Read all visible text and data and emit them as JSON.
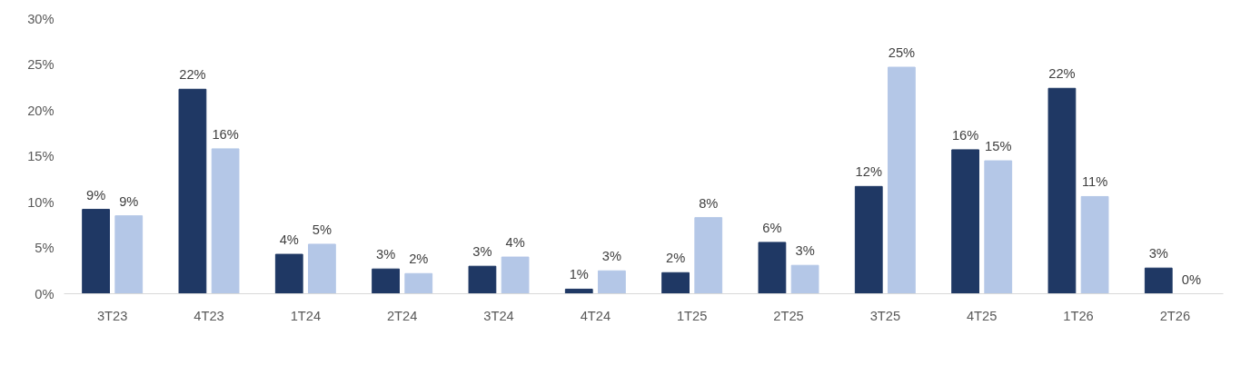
{
  "chart_data": {
    "type": "bar",
    "categories": [
      "3T23",
      "4T23",
      "1T24",
      "2T24",
      "3T24",
      "4T24",
      "1T25",
      "2T25",
      "3T25",
      "4T25",
      "1T26",
      "2T26"
    ],
    "series": [
      {
        "color": "#1f3864",
        "values": [
          9.2,
          22.3,
          4.3,
          2.7,
          3.0,
          0.5,
          2.3,
          5.6,
          11.7,
          15.7,
          22.4,
          2.8
        ],
        "value_labels": [
          "9%",
          "22%",
          "4%",
          "3%",
          "3%",
          "1%",
          "2%",
          "6%",
          "12%",
          "16%",
          "22%",
          "3%"
        ]
      },
      {
        "color": "#b4c7e7",
        "values": [
          8.5,
          15.8,
          5.4,
          2.2,
          4.0,
          2.5,
          8.3,
          3.1,
          24.7,
          14.5,
          10.6,
          0.0
        ],
        "value_labels": [
          "9%",
          "16%",
          "5%",
          "2%",
          "4%",
          "3%",
          "8%",
          "3%",
          "25%",
          "15%",
          "11%",
          "0%"
        ]
      }
    ],
    "ylim": [
      0,
      30
    ],
    "yticks": [
      {
        "value": 0,
        "label": "0%"
      },
      {
        "value": 5,
        "label": "5%"
      },
      {
        "value": 10,
        "label": "10%"
      },
      {
        "value": 15,
        "label": "15%"
      },
      {
        "value": 20,
        "label": "20%"
      },
      {
        "value": 25,
        "label": "25%"
      },
      {
        "value": 30,
        "label": "30%"
      }
    ],
    "grid": false
  }
}
